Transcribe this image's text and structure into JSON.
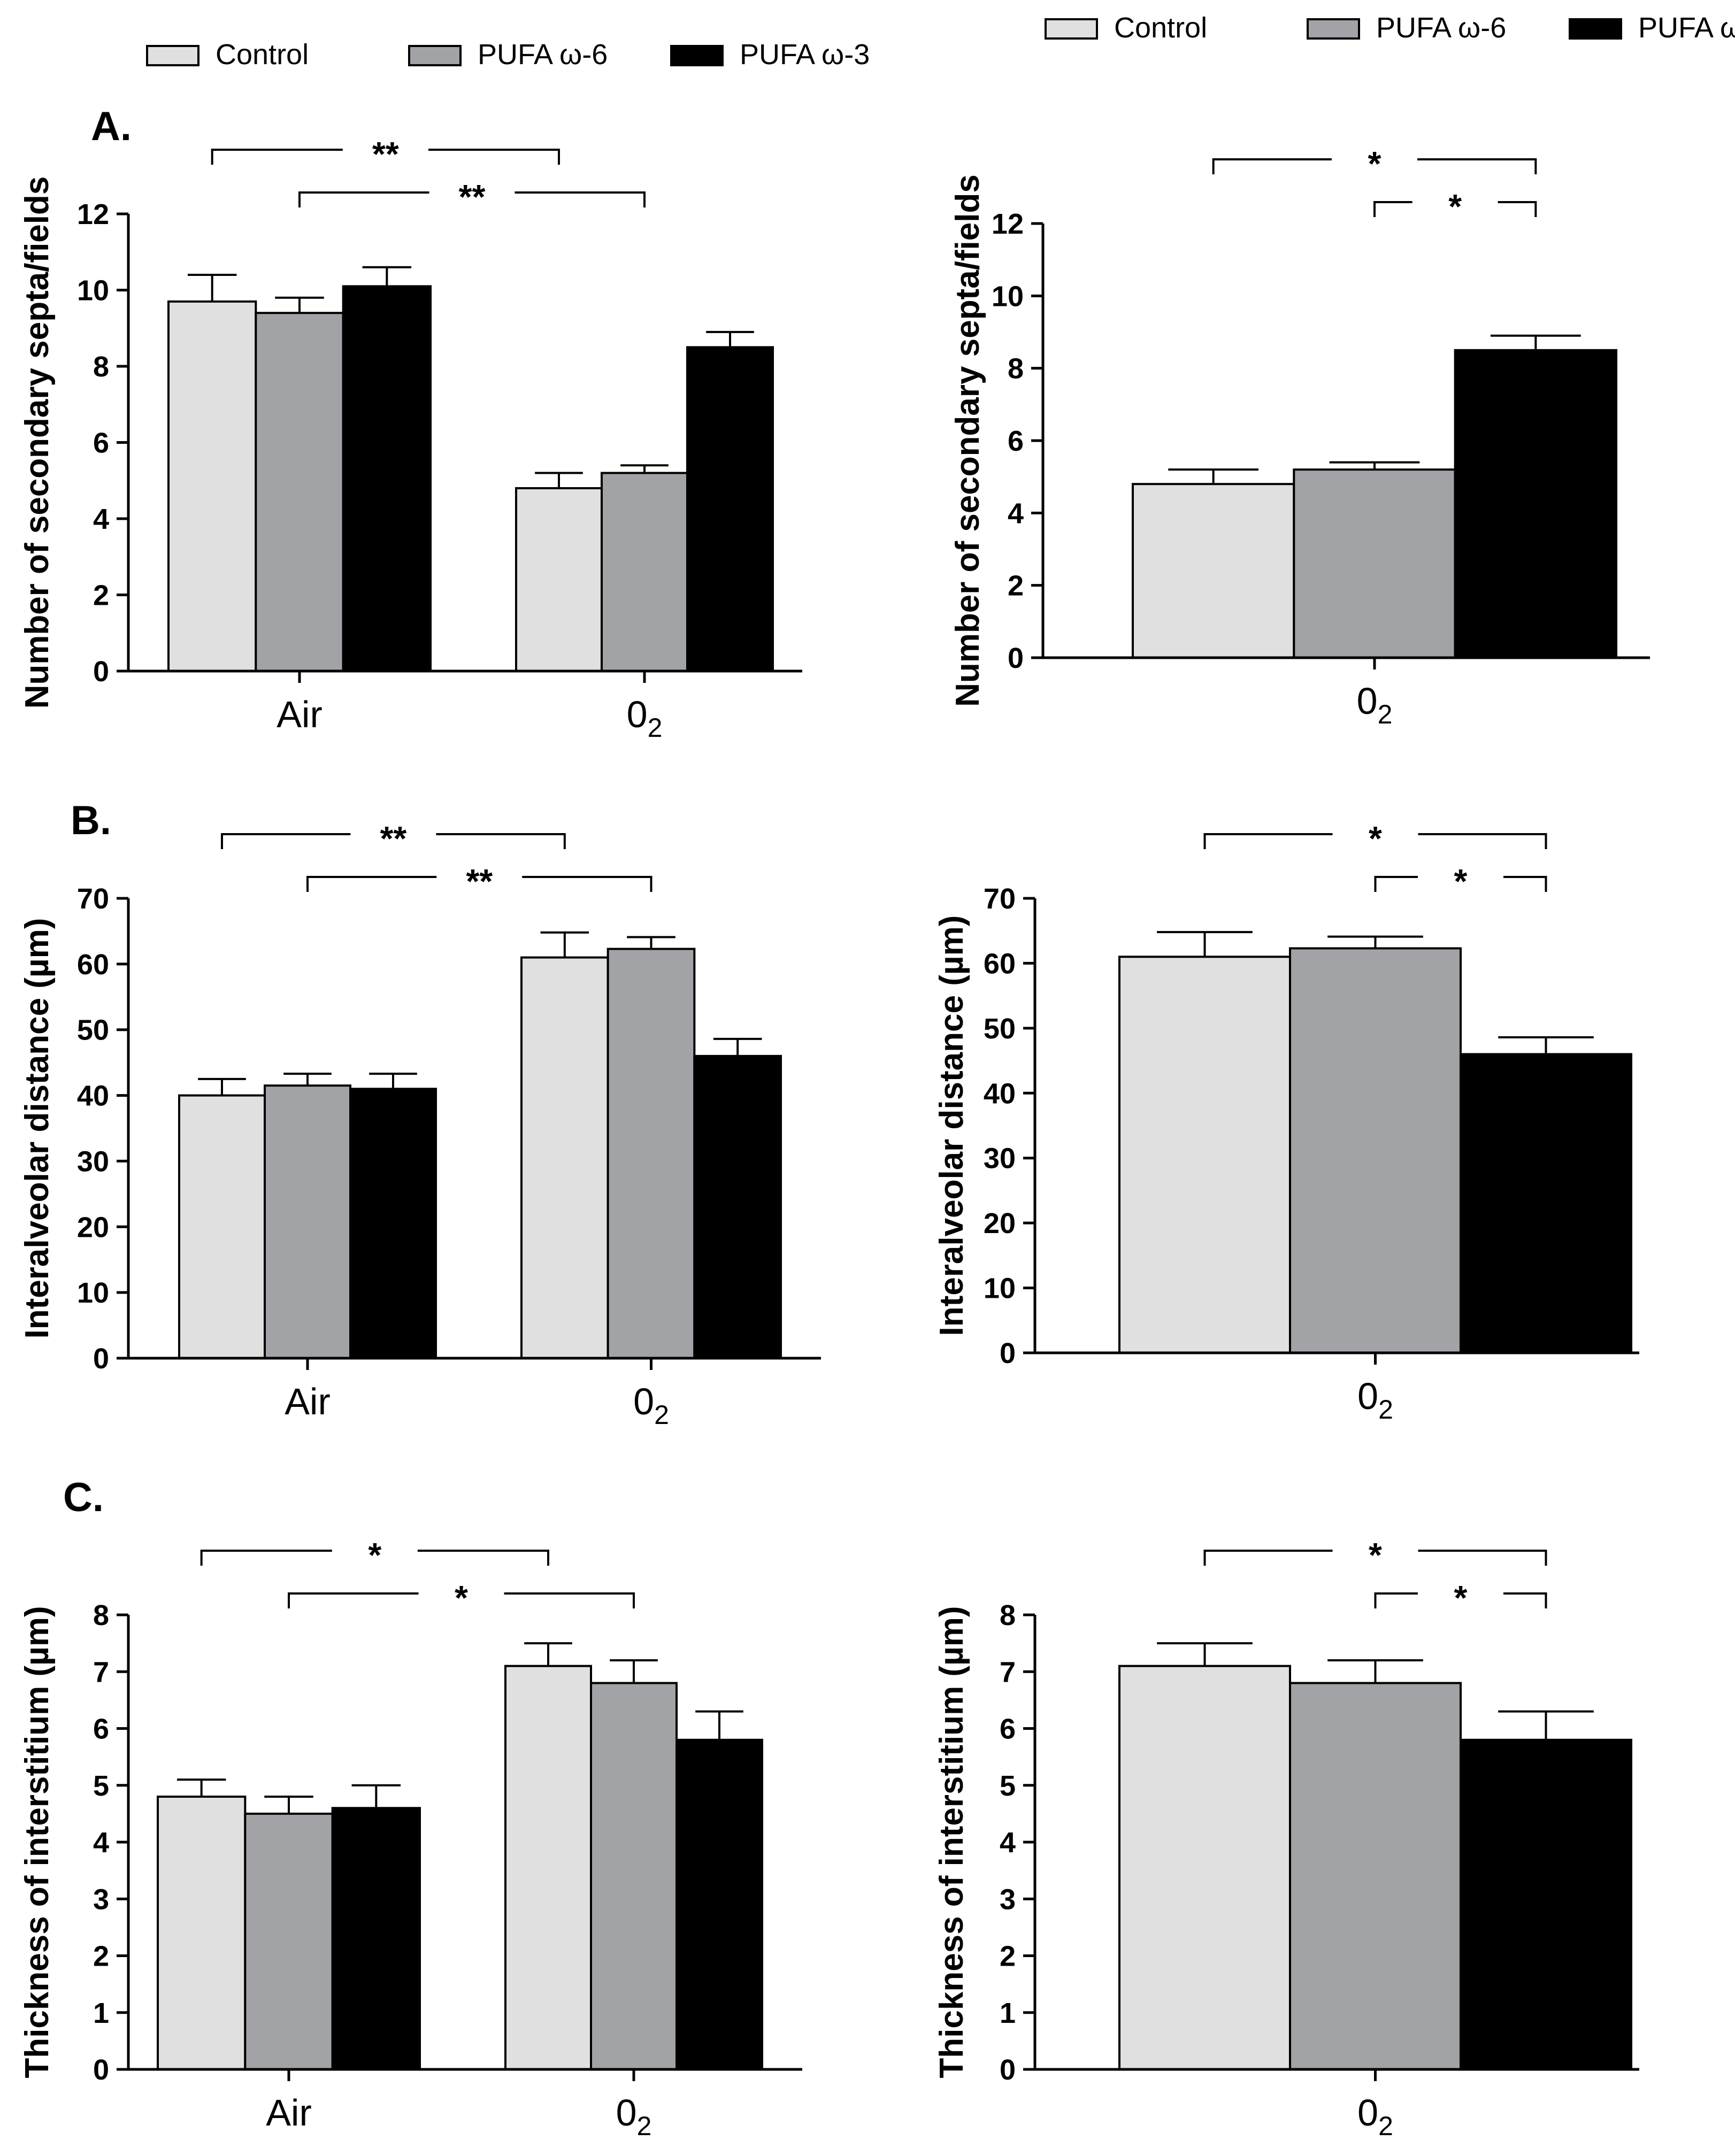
{
  "colors": {
    "control": "#e0e0e0",
    "omega6": "#a2a3a6",
    "omega3": "#000000",
    "axis": "#000000"
  },
  "legend": [
    {
      "key": "control",
      "label": "Control"
    },
    {
      "key": "omega6",
      "label": "PUFA ω-6"
    },
    {
      "key": "omega3",
      "label": "PUFA ω-3"
    }
  ],
  "panel_labels": [
    "A.",
    "B.",
    "C."
  ],
  "chart_data": [
    {
      "id": "A-left",
      "type": "bar",
      "title": "",
      "ylabel": "Number of secondary septa/fields",
      "ylim": [
        0,
        12
      ],
      "yticks": [
        0,
        2,
        4,
        6,
        8,
        10,
        12
      ],
      "categories": [
        {
          "text": "Air",
          "sub": ""
        },
        {
          "text": "0",
          "sub": "2"
        }
      ],
      "series": [
        {
          "name": "Control",
          "key": "control",
          "values": [
            9.7,
            4.8
          ],
          "errors": [
            0.7,
            0.4
          ]
        },
        {
          "name": "PUFA ω-6",
          "key": "omega6",
          "values": [
            9.4,
            5.2
          ],
          "errors": [
            0.4,
            0.2
          ]
        },
        {
          "name": "PUFA ω-3",
          "key": "omega3",
          "values": [
            10.1,
            8.5
          ],
          "errors": [
            0.5,
            0.4
          ]
        }
      ],
      "significance": [
        {
          "from": [
            0,
            0
          ],
          "to": [
            1,
            0
          ],
          "label": "**"
        },
        {
          "from": [
            0,
            1
          ],
          "to": [
            1,
            1
          ],
          "label": "**"
        }
      ]
    },
    {
      "id": "A-right",
      "type": "bar",
      "title": "",
      "ylabel": "Number of secondary septa/fields",
      "ylim": [
        0,
        12
      ],
      "yticks": [
        0,
        2,
        4,
        6,
        8,
        10,
        12
      ],
      "categories": [
        {
          "text": "0",
          "sub": "2"
        }
      ],
      "series": [
        {
          "name": "Control",
          "key": "control",
          "values": [
            4.8
          ],
          "errors": [
            0.4
          ]
        },
        {
          "name": "PUFA ω-6",
          "key": "omega6",
          "values": [
            5.2
          ],
          "errors": [
            0.2
          ]
        },
        {
          "name": "PUFA ω-3",
          "key": "omega3",
          "values": [
            8.5
          ],
          "errors": [
            0.4
          ]
        }
      ],
      "significance": [
        {
          "from": [
            0,
            0
          ],
          "to": [
            0,
            2
          ],
          "label": "*"
        },
        {
          "from": [
            0,
            1
          ],
          "to": [
            0,
            2
          ],
          "label": "*"
        }
      ]
    },
    {
      "id": "B-left",
      "type": "bar",
      "title": "",
      "ylabel": "Interalveolar distance (µm)",
      "ylim": [
        0,
        70
      ],
      "yticks": [
        0,
        10,
        20,
        30,
        40,
        50,
        60,
        70
      ],
      "categories": [
        {
          "text": "Air",
          "sub": ""
        },
        {
          "text": "0",
          "sub": "2"
        }
      ],
      "series": [
        {
          "name": "Control",
          "key": "control",
          "values": [
            40,
            61
          ],
          "errors": [
            2.5,
            3.8
          ]
        },
        {
          "name": "PUFA ω-6",
          "key": "omega6",
          "values": [
            41.5,
            62.3
          ],
          "errors": [
            1.8,
            1.8
          ]
        },
        {
          "name": "PUFA ω-3",
          "key": "omega3",
          "values": [
            41,
            46
          ],
          "errors": [
            2.3,
            2.6
          ]
        }
      ],
      "significance": [
        {
          "from": [
            0,
            0
          ],
          "to": [
            1,
            0
          ],
          "label": "**"
        },
        {
          "from": [
            0,
            1
          ],
          "to": [
            1,
            1
          ],
          "label": "**"
        }
      ]
    },
    {
      "id": "B-right",
      "type": "bar",
      "title": "",
      "ylabel": "Interalveolar distance (µm)",
      "ylim": [
        0,
        70
      ],
      "yticks": [
        0,
        10,
        20,
        30,
        40,
        50,
        60,
        70
      ],
      "categories": [
        {
          "text": "0",
          "sub": "2"
        }
      ],
      "series": [
        {
          "name": "Control",
          "key": "control",
          "values": [
            61
          ],
          "errors": [
            3.8
          ]
        },
        {
          "name": "PUFA ω-6",
          "key": "omega6",
          "values": [
            62.3
          ],
          "errors": [
            1.8
          ]
        },
        {
          "name": "PUFA ω-3",
          "key": "omega3",
          "values": [
            46
          ],
          "errors": [
            2.6
          ]
        }
      ],
      "significance": [
        {
          "from": [
            0,
            0
          ],
          "to": [
            0,
            2
          ],
          "label": "*"
        },
        {
          "from": [
            0,
            1
          ],
          "to": [
            0,
            2
          ],
          "label": "*"
        }
      ]
    },
    {
      "id": "C-left",
      "type": "bar",
      "title": "",
      "ylabel": "Thickness of interstitium (µm)",
      "ylim": [
        0,
        8
      ],
      "yticks": [
        0,
        1,
        2,
        3,
        4,
        5,
        6,
        7,
        8
      ],
      "categories": [
        {
          "text": "Air",
          "sub": ""
        },
        {
          "text": "0",
          "sub": "2"
        }
      ],
      "series": [
        {
          "name": "Control",
          "key": "control",
          "values": [
            4.8,
            7.1
          ],
          "errors": [
            0.3,
            0.4
          ]
        },
        {
          "name": "PUFA ω-6",
          "key": "omega6",
          "values": [
            4.5,
            6.8
          ],
          "errors": [
            0.3,
            0.4
          ]
        },
        {
          "name": "PUFA ω-3",
          "key": "omega3",
          "values": [
            4.6,
            5.8
          ],
          "errors": [
            0.4,
            0.5
          ]
        }
      ],
      "significance": [
        {
          "from": [
            0,
            0
          ],
          "to": [
            1,
            0
          ],
          "label": "*"
        },
        {
          "from": [
            0,
            1
          ],
          "to": [
            1,
            1
          ],
          "label": "*"
        }
      ]
    },
    {
      "id": "C-right",
      "type": "bar",
      "title": "",
      "ylabel": "Thickness of interstitium (µm)",
      "ylim": [
        0,
        8
      ],
      "yticks": [
        0,
        1,
        2,
        3,
        4,
        5,
        6,
        7,
        8
      ],
      "categories": [
        {
          "text": "0",
          "sub": "2"
        }
      ],
      "series": [
        {
          "name": "Control",
          "key": "control",
          "values": [
            7.1
          ],
          "errors": [
            0.4
          ]
        },
        {
          "name": "PUFA ω-6",
          "key": "omega6",
          "values": [
            6.8
          ],
          "errors": [
            0.4
          ]
        },
        {
          "name": "PUFA ω-3",
          "key": "omega3",
          "values": [
            5.8
          ],
          "errors": [
            0.5
          ]
        }
      ],
      "significance": [
        {
          "from": [
            0,
            0
          ],
          "to": [
            0,
            2
          ],
          "label": "*"
        },
        {
          "from": [
            0,
            1
          ],
          "to": [
            0,
            2
          ],
          "label": "*"
        }
      ]
    }
  ]
}
